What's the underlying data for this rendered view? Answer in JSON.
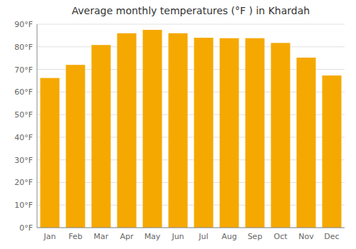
{
  "chart_data": {
    "type": "bar",
    "title": "Average monthly temperatures (°F ) in Khardah",
    "categories": [
      "Jan",
      "Feb",
      "Mar",
      "Apr",
      "May",
      "Jun",
      "Jul",
      "Aug",
      "Sep",
      "Oct",
      "Nov",
      "Dec"
    ],
    "values": [
      66.2,
      72.0,
      80.8,
      86.0,
      87.5,
      86.0,
      84.0,
      83.8,
      83.8,
      81.7,
      75.2,
      67.3
    ],
    "color": "#F5A800",
    "ylim": [
      0,
      90
    ],
    "yticks": [
      {
        "value": 0,
        "label": "0°F"
      },
      {
        "value": 10,
        "label": "10°F"
      },
      {
        "value": 20,
        "label": "20°F"
      },
      {
        "value": 30,
        "label": "30°F"
      },
      {
        "value": 40,
        "label": "40°F"
      },
      {
        "value": 50,
        "label": "50°F"
      },
      {
        "value": 60,
        "label": "60°F"
      },
      {
        "value": 70,
        "label": "70°F"
      },
      {
        "value": 80,
        "label": "80°F"
      },
      {
        "value": 90,
        "label": "90°F"
      }
    ],
    "grid": true
  }
}
